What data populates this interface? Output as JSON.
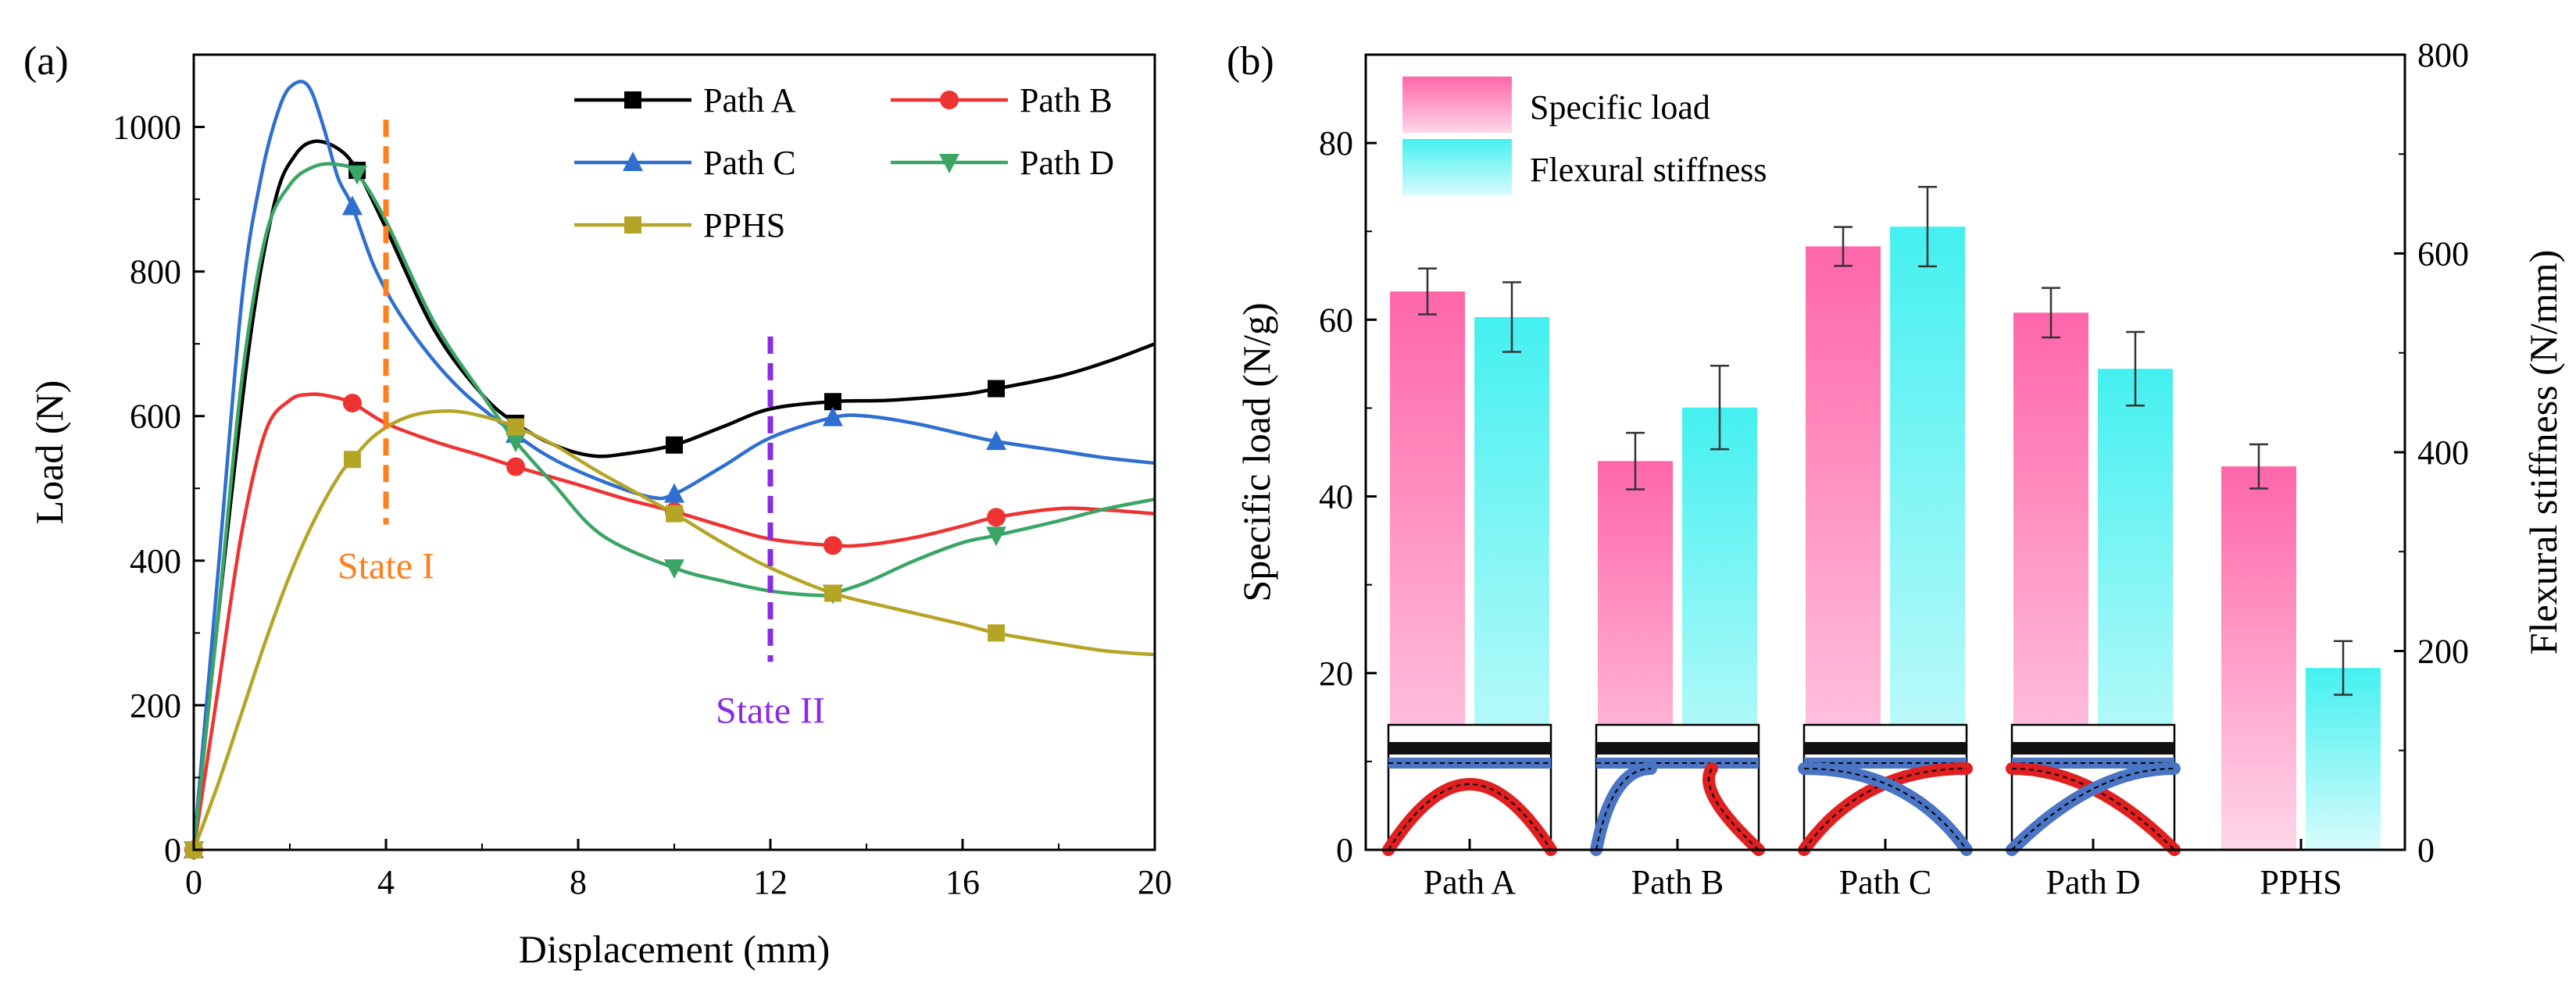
{
  "figure": {
    "panel_a_label": "(a)",
    "panel_b_label": "(b)"
  },
  "chart_data": [
    {
      "type": "line",
      "title": "",
      "xlabel": "Displacement (mm)",
      "ylabel": "Load (N)",
      "xlim": [
        0,
        20
      ],
      "ylim": [
        0,
        1100
      ],
      "xticks": [
        0,
        4,
        8,
        12,
        16,
        20
      ],
      "yticks": [
        0,
        200,
        400,
        600,
        800,
        1000
      ],
      "legend_position": "top-right",
      "series": [
        {
          "name": "Path A",
          "color": "#000000",
          "marker": "square",
          "x": [
            0,
            0.6,
            1.2,
            1.7,
            2.1,
            2.5,
            3.0,
            3.4,
            4.0,
            5.0,
            6.0,
            6.7,
            7.5,
            8.3,
            9.0,
            10.0,
            11.0,
            12.0,
            13.3,
            14.5,
            16.0,
            16.7,
            18.0,
            19.0,
            20.0
          ],
          "y": [
            0,
            380,
            720,
            900,
            960,
            980,
            970,
            940,
            860,
            720,
            630,
            590,
            560,
            545,
            548,
            560,
            585,
            610,
            620,
            622,
            630,
            638,
            655,
            675,
            700
          ],
          "marker_x": [
            0,
            3.4,
            6.7,
            10.0,
            13.3,
            16.7
          ],
          "marker_y": [
            0,
            940,
            590,
            560,
            620,
            638
          ]
        },
        {
          "name": "Path B",
          "color": "#ee3333",
          "marker": "circle",
          "x": [
            0,
            0.5,
            1.0,
            1.5,
            2.0,
            2.4,
            2.8,
            3.3,
            4.0,
            5.0,
            6.0,
            6.7,
            8.0,
            9.0,
            10.0,
            11.0,
            12.0,
            13.3,
            14.0,
            15.0,
            16.0,
            16.7,
            18.0,
            19.0,
            20.0
          ],
          "y": [
            0,
            220,
            440,
            580,
            622,
            630,
            628,
            618,
            590,
            565,
            545,
            530,
            505,
            485,
            468,
            448,
            430,
            421,
            422,
            432,
            448,
            460,
            472,
            470,
            465
          ],
          "marker_x": [
            0,
            3.3,
            6.7,
            10.0,
            13.3,
            16.7
          ],
          "marker_y": [
            0,
            618,
            530,
            468,
            421,
            460
          ]
        },
        {
          "name": "Path C",
          "color": "#2f6fd0",
          "marker": "triangle-up",
          "x": [
            0,
            0.5,
            1.0,
            1.4,
            1.8,
            2.1,
            2.4,
            2.7,
            3.0,
            3.3,
            3.8,
            4.5,
            5.5,
            6.7,
            7.5,
            8.5,
            9.5,
            10.0,
            11.0,
            12.0,
            13.3,
            14.0,
            15.0,
            16.0,
            16.7,
            18.0,
            19.0,
            20.0
          ],
          "y": [
            0,
            380,
            760,
            930,
            1030,
            1060,
            1055,
            1000,
            930,
            890,
            800,
            720,
            640,
            575,
            540,
            510,
            488,
            492,
            530,
            570,
            598,
            600,
            590,
            575,
            565,
            552,
            542,
            535
          ],
          "marker_x": [
            0,
            3.3,
            6.7,
            10.0,
            13.3,
            16.7
          ],
          "marker_y": [
            0,
            890,
            575,
            492,
            598,
            565
          ]
        },
        {
          "name": "Path D",
          "color": "#3ba565",
          "marker": "triangle-down",
          "x": [
            0,
            0.5,
            1.0,
            1.5,
            2.0,
            2.5,
            3.0,
            3.4,
            4.0,
            5.0,
            6.0,
            6.7,
            7.5,
            8.5,
            10.0,
            11.0,
            12.0,
            13.0,
            13.3,
            14.0,
            15.0,
            16.0,
            16.7,
            18.0,
            19.0,
            20.0
          ],
          "y": [
            0,
            320,
            650,
            850,
            920,
            945,
            948,
            935,
            870,
            730,
            630,
            565,
            505,
            435,
            390,
            372,
            358,
            352,
            355,
            370,
            400,
            425,
            435,
            455,
            472,
            485
          ],
          "marker_x": [
            0,
            3.4,
            6.7,
            10.0,
            13.3,
            16.7
          ],
          "marker_y": [
            0,
            935,
            565,
            390,
            355,
            435
          ]
        },
        {
          "name": "PPHS",
          "color": "#b5a526",
          "marker": "square",
          "x": [
            0,
            0.5,
            1.0,
            1.5,
            2.0,
            2.5,
            3.0,
            3.3,
            3.8,
            4.5,
            5.3,
            6.0,
            6.7,
            7.5,
            8.5,
            10.0,
            11.0,
            12.0,
            13.3,
            14.5,
            16.0,
            16.7,
            18.0,
            19.0,
            20.0
          ],
          "y": [
            0,
            90,
            190,
            290,
            380,
            455,
            515,
            540,
            575,
            600,
            607,
            600,
            585,
            560,
            520,
            465,
            425,
            390,
            355,
            335,
            312,
            300,
            285,
            275,
            270
          ],
          "marker_x": [
            0,
            3.3,
            6.7,
            10.0,
            13.3,
            16.7
          ],
          "marker_y": [
            0,
            540,
            585,
            465,
            355,
            300
          ]
        }
      ],
      "annotations": [
        {
          "label": "State I",
          "x": 4,
          "y_from": 450,
          "y_to": 1010,
          "color": "#ff7f1e",
          "label_x": 4,
          "label_y": 395
        },
        {
          "label": "State II",
          "x": 12,
          "y_from": 260,
          "y_to": 710,
          "color": "#8a2be2",
          "label_x": 12,
          "label_y": 195
        }
      ]
    },
    {
      "type": "bar",
      "title": "",
      "categories": [
        "Path A",
        "Path B",
        "Path C",
        "Path D",
        "PPHS"
      ],
      "ylabel": "Specific load (N/g)",
      "ylim": [
        0,
        90
      ],
      "yticks": [
        0,
        20,
        40,
        60,
        80
      ],
      "y2label": "Flexural stiffness (N/mm)",
      "y2lim": [
        0,
        800
      ],
      "y2ticks": [
        0,
        200,
        400,
        600,
        800
      ],
      "legend_position": "top-left",
      "series": [
        {
          "name": "Specific load",
          "axis": "left",
          "color": "#ff66aa",
          "values": [
            63.2,
            44.0,
            68.3,
            60.8,
            43.4
          ],
          "errors": [
            2.6,
            3.2,
            2.2,
            2.8,
            2.5
          ]
        },
        {
          "name": "Flexural stiffness",
          "axis": "right",
          "color": "#44f0f0",
          "values": [
            536,
            445,
            627,
            484,
            183
          ],
          "errors": [
            35,
            42,
            40,
            37,
            27
          ]
        }
      ]
    }
  ]
}
